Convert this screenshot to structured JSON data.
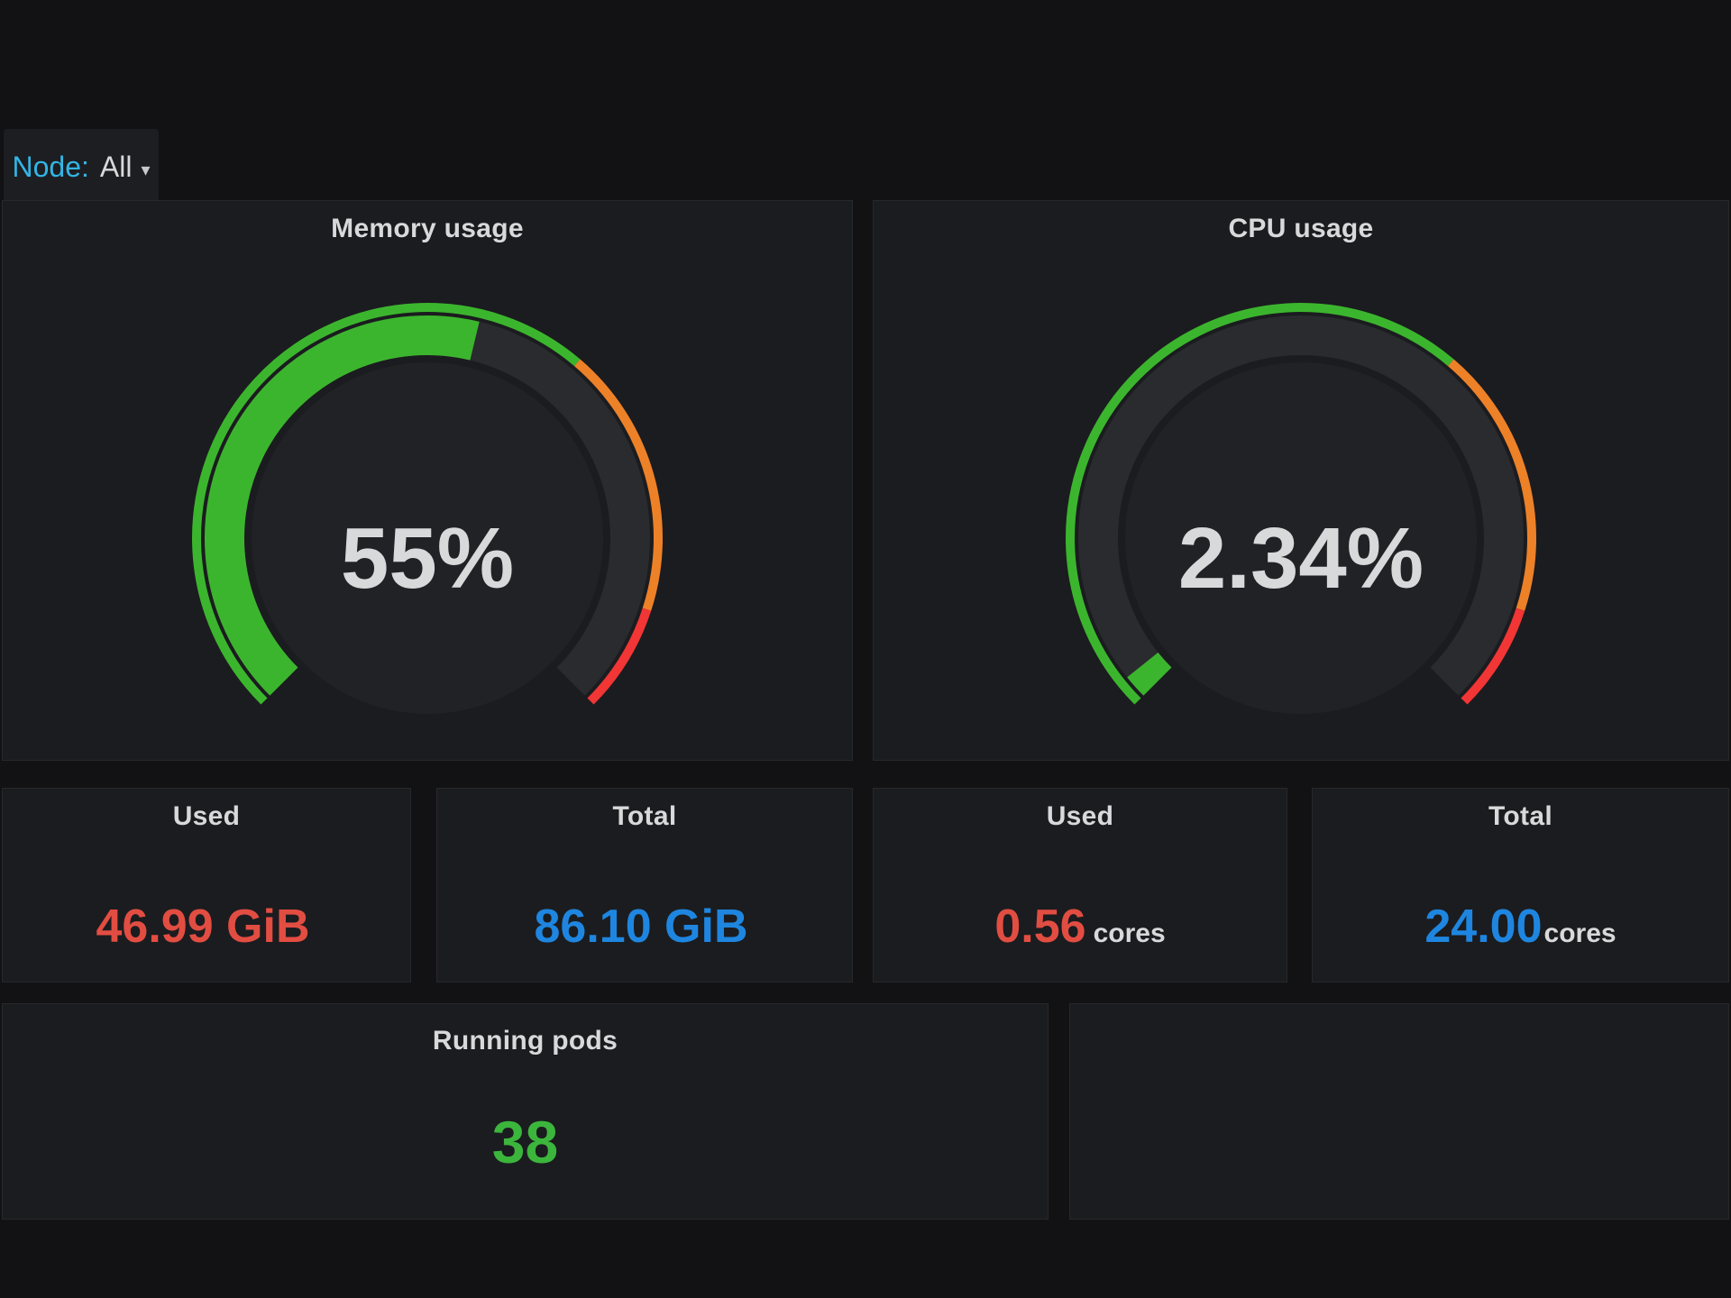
{
  "variable_bar": {
    "label": "Node:",
    "value": "All"
  },
  "panels": {
    "memory_gauge": {
      "title": "Memory usage",
      "value_text": "55%"
    },
    "cpu_gauge": {
      "title": "CPU usage",
      "value_text": "2.34%"
    },
    "mem_used": {
      "title": "Used",
      "value": "46.99 GiB",
      "unit": ""
    },
    "mem_total": {
      "title": "Total",
      "value": "86.10 GiB",
      "unit": ""
    },
    "cpu_used": {
      "title": "Used",
      "value": "0.56",
      "unit": "cores"
    },
    "cpu_total": {
      "title": "Total",
      "value": "24.00",
      "unit": "cores"
    },
    "running_pods": {
      "title": "Running pods",
      "value": "38"
    }
  },
  "colors": {
    "page_bg": "#121214",
    "panel_bg": "#1B1C1F",
    "title_text": "#D8D9DA",
    "variable_label": "#33B5E5",
    "green": "#3CB52E",
    "orange": "#ED8128",
    "red": "#F23535",
    "blue": "#1E86E0",
    "used_red_orange": "#E24D42",
    "pods_green": "#3CB53C",
    "gauge_track": "#2A2B2E",
    "gauge_inner": "#212226",
    "value_text": "#D8D9DA"
  },
  "chart_data": [
    {
      "type": "gauge",
      "title": "Memory usage",
      "value": 55,
      "min": 0,
      "max": 100,
      "display": "55%",
      "unit": "%",
      "value_arc_color": "#3CB52E",
      "track_color": "#2A2B2E",
      "inner_color": "#212226",
      "text_color": "#D8D9DA",
      "thresholds": [
        {
          "to": 65,
          "color": "#3CB52E"
        },
        {
          "to": 90,
          "color": "#ED8128"
        },
        {
          "to": 100,
          "color": "#F23535"
        }
      ]
    },
    {
      "type": "gauge",
      "title": "CPU usage",
      "value": 2.34,
      "min": 0,
      "max": 100,
      "display": "2.34%",
      "unit": "%",
      "value_arc_color": "#3CB52E",
      "track_color": "#2A2B2E",
      "inner_color": "#212226",
      "text_color": "#D8D9DA",
      "thresholds": [
        {
          "to": 65,
          "color": "#3CB52E"
        },
        {
          "to": 90,
          "color": "#ED8128"
        },
        {
          "to": 100,
          "color": "#F23535"
        }
      ]
    },
    {
      "type": "stat",
      "title": "Used",
      "value": 46.99,
      "unit": "GiB",
      "display": "46.99 GiB",
      "color": "#E24D42"
    },
    {
      "type": "stat",
      "title": "Total",
      "value": 86.1,
      "unit": "GiB",
      "display": "86.10 GiB",
      "color": "#1E86E0"
    },
    {
      "type": "stat",
      "title": "Used",
      "value": 0.56,
      "unit": "cores",
      "display": "0.56 cores",
      "color": "#E24D42"
    },
    {
      "type": "stat",
      "title": "Total",
      "value": 24.0,
      "unit": "cores",
      "display": "24.00 cores",
      "color": "#1E86E0"
    },
    {
      "type": "stat",
      "title": "Running pods",
      "value": 38,
      "unit": "",
      "display": "38",
      "color": "#3CB53C"
    }
  ]
}
